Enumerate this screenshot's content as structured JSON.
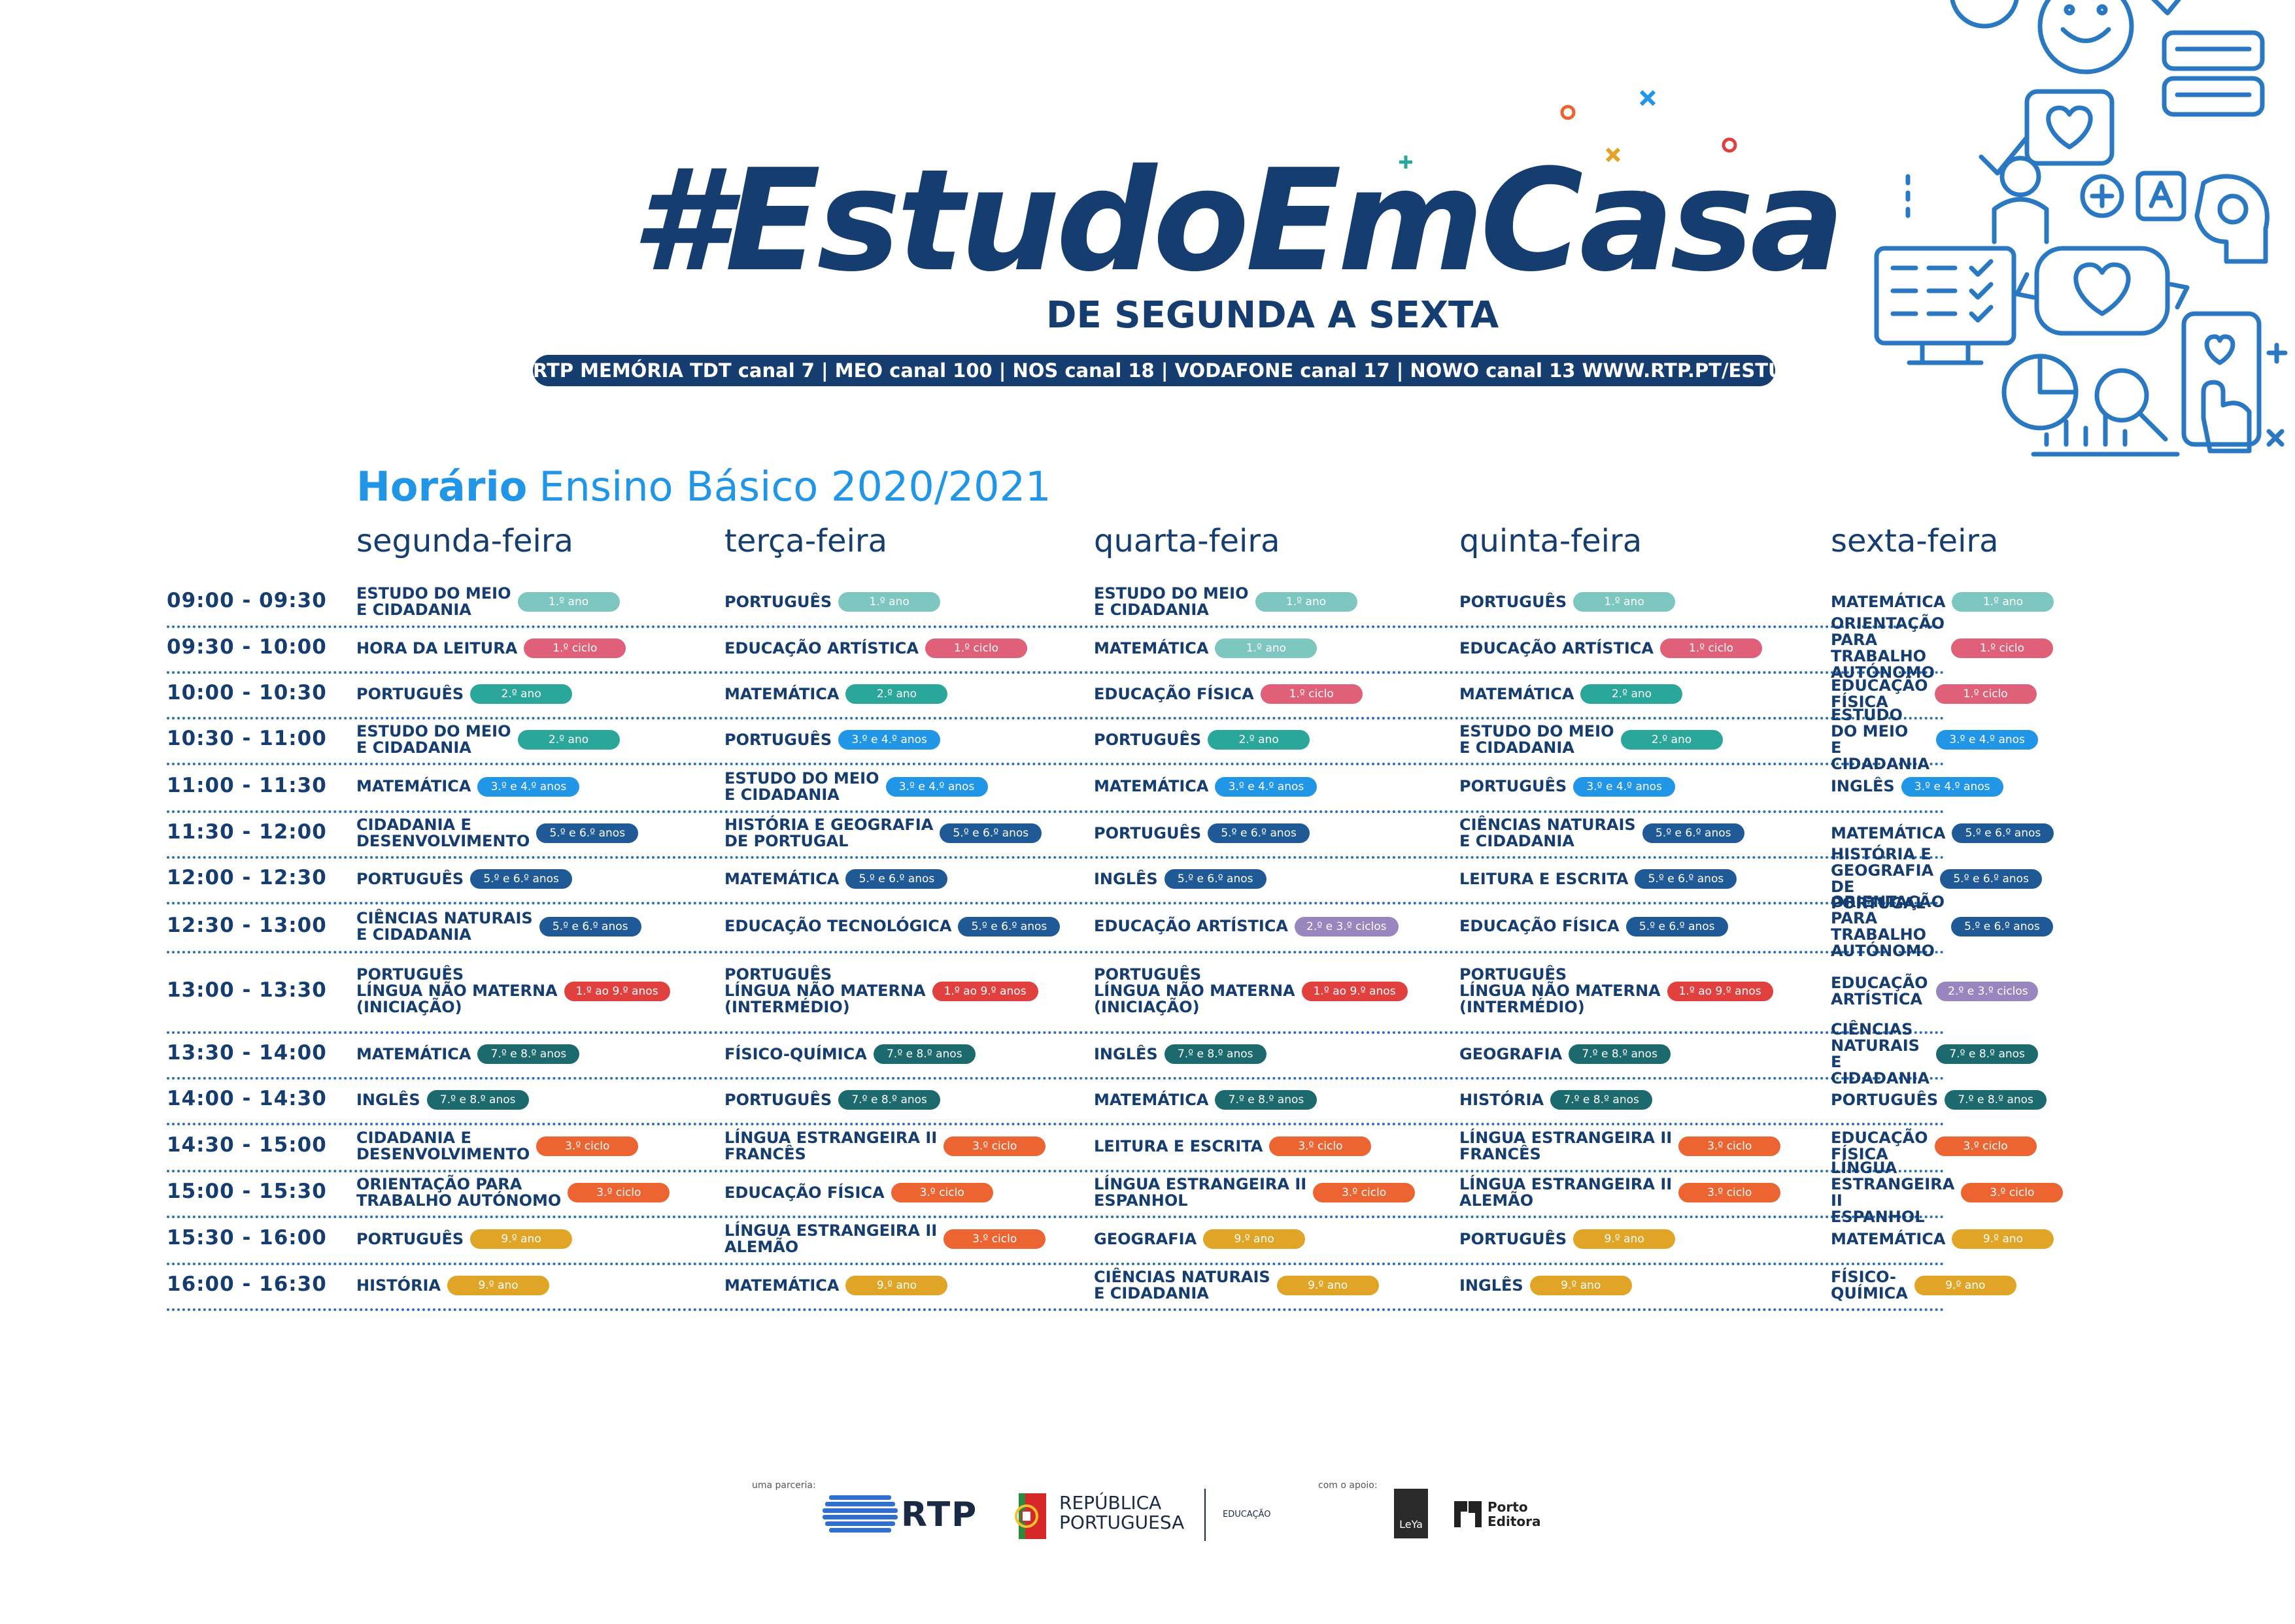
{
  "header": {
    "brand": "#EstudoEmCasa",
    "subtitle": "DE SEGUNDA A SEXTA",
    "channels": "RTP MEMÓRIA  TDT canal 7 | MEO canal 100 | NOS canal 18 | VODAFONE canal 17 | NOWO canal 13    WWW.RTP.PT/ESTUDOEMCASA"
  },
  "heading": {
    "strong": "Horário",
    "rest": "Ensino Básico 2020/2021"
  },
  "days": [
    "segunda-feira",
    "terça-feira",
    "quarta-feira",
    "quinta-feira",
    "sexta-feira"
  ],
  "level_colors": {
    "1.º ano": "#7dc7c0",
    "1.º ciclo": "#e0607a",
    "2.º ano": "#2aa79a",
    "3.º e 4.º anos": "#2196e6",
    "5.º e 6.º anos": "#1f5a96",
    "2.º e 3.º ciclos": "#9a86bf",
    "1.º ao 9.º anos": "#e0413f",
    "7.º e 8.º anos": "#1c6a6e",
    "3.º ciclo": "#ec6432",
    "9.º ano": "#e0a526"
  },
  "schedule": [
    {
      "time": "09:00 - 09:30",
      "cells": [
        {
          "s": "ESTUDO DO MEIO\nE CIDADANIA",
          "l": "1.º ano"
        },
        {
          "s": "PORTUGUÊS",
          "l": "1.º ano"
        },
        {
          "s": "ESTUDO DO MEIO\nE CIDADANIA",
          "l": "1.º ano"
        },
        {
          "s": "PORTUGUÊS",
          "l": "1.º ano"
        },
        {
          "s": "MATEMÁTICA",
          "l": "1.º ano"
        }
      ]
    },
    {
      "time": "09:30 - 10:00",
      "cells": [
        {
          "s": "HORA DA LEITURA",
          "l": "1.º ciclo"
        },
        {
          "s": "EDUCAÇÃO ARTÍSTICA",
          "l": "1.º ciclo"
        },
        {
          "s": "MATEMÁTICA",
          "l": "1.º ano"
        },
        {
          "s": "EDUCAÇÃO ARTÍSTICA",
          "l": "1.º ciclo"
        },
        {
          "s": "ORIENTAÇÃO PARA\nTRABALHO AUTÓNOMO",
          "l": "1.º ciclo"
        }
      ]
    },
    {
      "time": "10:00 - 10:30",
      "cells": [
        {
          "s": "PORTUGUÊS",
          "l": "2.º ano"
        },
        {
          "s": "MATEMÁTICA",
          "l": "2.º ano"
        },
        {
          "s": "EDUCAÇÃO FÍSICA",
          "l": "1.º ciclo"
        },
        {
          "s": "MATEMÁTICA",
          "l": "2.º ano"
        },
        {
          "s": "EDUCAÇÃO FÍSICA",
          "l": "1.º ciclo"
        }
      ]
    },
    {
      "time": "10:30 - 11:00",
      "cells": [
        {
          "s": "ESTUDO DO MEIO\nE CIDADANIA",
          "l": "2.º ano"
        },
        {
          "s": "PORTUGUÊS",
          "l": "3.º e 4.º anos"
        },
        {
          "s": "PORTUGUÊS",
          "l": "2.º ano"
        },
        {
          "s": "ESTUDO DO MEIO\nE CIDADANIA",
          "l": "2.º ano"
        },
        {
          "s": "ESTUDO DO MEIO\nE CIDADANIA",
          "l": "3.º e 4.º anos"
        }
      ]
    },
    {
      "time": "11:00 - 11:30",
      "cells": [
        {
          "s": "MATEMÁTICA",
          "l": "3.º e 4.º anos"
        },
        {
          "s": "ESTUDO DO MEIO\nE CIDADANIA",
          "l": "3.º e 4.º anos"
        },
        {
          "s": "MATEMÁTICA",
          "l": "3.º e 4.º anos"
        },
        {
          "s": "PORTUGUÊS",
          "l": "3.º e 4.º anos"
        },
        {
          "s": "INGLÊS",
          "l": "3.º e 4.º anos"
        }
      ]
    },
    {
      "time": "11:30 - 12:00",
      "cells": [
        {
          "s": "CIDADANIA E\nDESENVOLVIMENTO",
          "l": "5.º e 6.º anos"
        },
        {
          "s": "HISTÓRIA E GEOGRAFIA\nDE PORTUGAL",
          "l": "5.º e 6.º anos"
        },
        {
          "s": "PORTUGUÊS",
          "l": "5.º e 6.º anos"
        },
        {
          "s": "CIÊNCIAS NATURAIS\nE CIDADANIA",
          "l": "5.º e 6.º anos"
        },
        {
          "s": "MATEMÁTICA",
          "l": "5.º e 6.º anos"
        }
      ]
    },
    {
      "time": "12:00 - 12:30",
      "cells": [
        {
          "s": "PORTUGUÊS",
          "l": "5.º e 6.º anos"
        },
        {
          "s": "MATEMÁTICA",
          "l": "5.º e 6.º anos"
        },
        {
          "s": "INGLÊS",
          "l": "5.º e 6.º anos"
        },
        {
          "s": "LEITURA E ESCRITA",
          "l": "5.º e 6.º anos"
        },
        {
          "s": "HISTÓRIA E GEOGRAFIA\nDE PORTUGAL",
          "l": "5.º e 6.º anos"
        }
      ]
    },
    {
      "time": "12:30 - 13:00",
      "cells": [
        {
          "s": "CIÊNCIAS NATURAIS\nE CIDADANIA",
          "l": "5.º e 6.º anos"
        },
        {
          "s": "EDUCAÇÃO TECNOLÓGICA",
          "l": "5.º e 6.º anos"
        },
        {
          "s": "EDUCAÇÃO ARTÍSTICA",
          "l": "2.º e 3.º ciclos"
        },
        {
          "s": "EDUCAÇÃO FÍSICA",
          "l": "5.º e 6.º anos"
        },
        {
          "s": "ORIENTAÇÃO PARA\nTRABALHO AUTÓNOMO",
          "l": "5.º e 6.º anos"
        }
      ]
    },
    {
      "time": "13:00 - 13:30",
      "cells": [
        {
          "s": "PORTUGUÊS\nLÍNGUA NÃO MATERNA\n(INICIAÇÃO)",
          "l": "1.º ao 9.º anos"
        },
        {
          "s": "PORTUGUÊS\nLÍNGUA NÃO MATERNA\n(INTERMÉDIO)",
          "l": "1.º ao 9.º anos"
        },
        {
          "s": "PORTUGUÊS\nLÍNGUA NÃO MATERNA\n(INICIAÇÃO)",
          "l": "1.º ao 9.º anos"
        },
        {
          "s": "PORTUGUÊS\nLÍNGUA NÃO MATERNA\n(INTERMÉDIO)",
          "l": "1.º ao 9.º anos"
        },
        {
          "s": "EDUCAÇÃO ARTÍSTICA",
          "l": "2.º e 3.º ciclos"
        }
      ]
    },
    {
      "time": "13:30 - 14:00",
      "cells": [
        {
          "s": "MATEMÁTICA",
          "l": "7.º e 8.º anos"
        },
        {
          "s": "FÍSICO-QUÍMICA",
          "l": "7.º e 8.º anos"
        },
        {
          "s": "INGLÊS",
          "l": "7.º e 8.º anos"
        },
        {
          "s": "GEOGRAFIA",
          "l": "7.º e 8.º anos"
        },
        {
          "s": "CIÊNCIAS NATURAIS\nE CIDADANIA",
          "l": "7.º e 8.º anos"
        }
      ]
    },
    {
      "time": "14:00 - 14:30",
      "cells": [
        {
          "s": "INGLÊS",
          "l": "7.º e 8.º anos"
        },
        {
          "s": "PORTUGUÊS",
          "l": "7.º e 8.º anos"
        },
        {
          "s": "MATEMÁTICA",
          "l": "7.º e 8.º anos"
        },
        {
          "s": "HISTÓRIA",
          "l": "7.º e 8.º anos"
        },
        {
          "s": "PORTUGUÊS",
          "l": "7.º e 8.º anos"
        }
      ]
    },
    {
      "time": "14:30 - 15:00",
      "cells": [
        {
          "s": "CIDADANIA E\nDESENVOLVIMENTO",
          "l": "3.º ciclo"
        },
        {
          "s": "LÍNGUA ESTRANGEIRA II\nFRANCÊS",
          "l": "3.º ciclo"
        },
        {
          "s": "LEITURA E ESCRITA",
          "l": "3.º ciclo"
        },
        {
          "s": "LÍNGUA ESTRANGEIRA II\nFRANCÊS",
          "l": "3.º ciclo"
        },
        {
          "s": "EDUCAÇÃO FÍSICA",
          "l": "3.º ciclo"
        }
      ]
    },
    {
      "time": "15:00 - 15:30",
      "cells": [
        {
          "s": "ORIENTAÇÃO PARA\nTRABALHO AUTÓNOMO",
          "l": "3.º ciclo"
        },
        {
          "s": "EDUCAÇÃO FÍSICA",
          "l": "3.º ciclo"
        },
        {
          "s": "LÍNGUA ESTRANGEIRA II\nESPANHOL",
          "l": "3.º ciclo"
        },
        {
          "s": "LÍNGUA ESTRANGEIRA II\nALEMÃO",
          "l": "3.º ciclo"
        },
        {
          "s": "LÍNGUA ESTRANGEIRA II\nESPANHOL",
          "l": "3.º ciclo"
        }
      ]
    },
    {
      "time": "15:30 - 16:00",
      "cells": [
        {
          "s": "PORTUGUÊS",
          "l": "9.º ano"
        },
        {
          "s": "LÍNGUA ESTRANGEIRA II\nALEMÃO",
          "l": "3.º ciclo"
        },
        {
          "s": "GEOGRAFIA",
          "l": "9.º ano"
        },
        {
          "s": "PORTUGUÊS",
          "l": "9.º ano"
        },
        {
          "s": "MATEMÁTICA",
          "l": "9.º ano"
        }
      ]
    },
    {
      "time": "16:00 - 16:30",
      "cells": [
        {
          "s": "HISTÓRIA",
          "l": "9.º ano"
        },
        {
          "s": "MATEMÁTICA",
          "l": "9.º ano"
        },
        {
          "s": "CIÊNCIAS NATURAIS\nE CIDADANIA",
          "l": "9.º ano"
        },
        {
          "s": "INGLÊS",
          "l": "9.º ano"
        },
        {
          "s": "FÍSICO-QUÍMICA",
          "l": "9.º ano"
        }
      ]
    }
  ],
  "footer": {
    "partnership_label": "uma parceria:",
    "rtp": "RTP",
    "republica": "REPÚBLICA\nPORTUGUESA",
    "educacao": "EDUCAÇÃO",
    "support_label": "com o apoio:",
    "leya": "LeYa",
    "porto_editora": "Porto\nEditora"
  }
}
